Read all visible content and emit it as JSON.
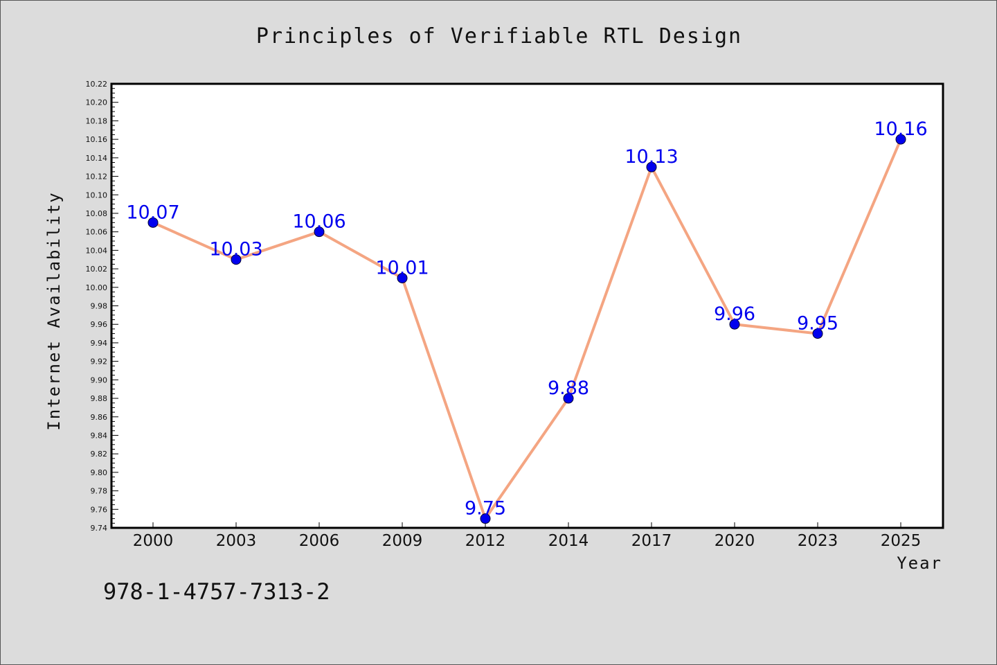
{
  "note": "978-1-4757-7313-2",
  "colors": {
    "line": "#f4a582",
    "marker": "#0000ee",
    "label": "#0000ee",
    "plot_background": "#ffffff",
    "page_background": "#dcdcdc"
  },
  "chart_data": {
    "type": "line",
    "title": "Principles of Verifiable RTL Design",
    "xlabel": "Year",
    "ylabel": "Internet Availability",
    "categories": [
      "2000",
      "2003",
      "2006",
      "2009",
      "2012",
      "2014",
      "2017",
      "2020",
      "2023",
      "2025"
    ],
    "series": [
      {
        "values": [
          10.07,
          10.03,
          10.06,
          10.01,
          9.75,
          9.88,
          10.13,
          9.96,
          9.95,
          10.16
        ]
      }
    ],
    "data_labels": [
      "10.07",
      "10.03",
      "10.06",
      "10.01",
      "9.75",
      "9.88",
      "10.13",
      "9.96",
      "9.95",
      "10.16"
    ],
    "ylim": [
      9.74,
      10.22
    ],
    "yticks": [
      "9.74",
      "9.76",
      "9.78",
      "9.80",
      "9.82",
      "9.84",
      "9.86",
      "9.88",
      "9.90",
      "9.92",
      "9.94",
      "9.96",
      "9.98",
      "10.00",
      "10.02",
      "10.04",
      "10.06",
      "10.08",
      "10.10",
      "10.12",
      "10.14",
      "10.16",
      "10.18",
      "10.20",
      "10.22"
    ],
    "grid": false,
    "legend": "none"
  }
}
